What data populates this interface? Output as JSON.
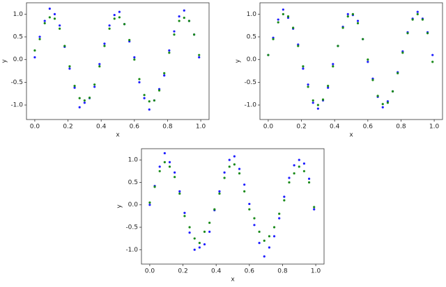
{
  "chart_data": [
    {
      "type": "scatter",
      "xlabel": "x",
      "ylabel": "y",
      "x": [
        0,
        0.03,
        0.06,
        0.09,
        0.12,
        0.15,
        0.18,
        0.21,
        0.24,
        0.27,
        0.3,
        0.33,
        0.36,
        0.39,
        0.42,
        0.45,
        0.48,
        0.51,
        0.54,
        0.57,
        0.6,
        0.63,
        0.66,
        0.69,
        0.72,
        0.75,
        0.78,
        0.81,
        0.84,
        0.87,
        0.9,
        0.93,
        0.96,
        0.99
      ],
      "series": [
        {
          "color": "#1f1fff",
          "values": [
            0.05,
            0.5,
            0.85,
            1.12,
            1.0,
            0.75,
            0.28,
            -0.2,
            -0.62,
            -1.05,
            -0.95,
            -0.85,
            -0.6,
            -0.1,
            0.35,
            0.75,
            0.98,
            1.05,
            0.78,
            0.4,
            0.05,
            -0.5,
            -0.85,
            -1.1,
            -0.9,
            -0.65,
            -0.35,
            0.2,
            0.62,
            0.95,
            1.08,
            0.85,
            0.55,
            0.05
          ]
        },
        {
          "color": "#1a8a1a",
          "values": [
            0.2,
            0.45,
            0.8,
            0.93,
            0.9,
            0.68,
            0.3,
            -0.15,
            -0.58,
            -0.85,
            -0.9,
            -0.84,
            -0.55,
            -0.15,
            0.3,
            0.68,
            0.9,
            0.93,
            0.78,
            0.43,
            0,
            -0.43,
            -0.78,
            -0.92,
            -0.9,
            -0.68,
            -0.3,
            0.15,
            0.55,
            0.85,
            0.92,
            0.85,
            0.55,
            0.1
          ]
        }
      ],
      "xlim": [
        -0.05,
        1.05
      ],
      "ylim": [
        -1.32,
        1.25
      ],
      "xticks": [
        {
          "value": 0,
          "label": "0.0"
        },
        {
          "value": 0.2,
          "label": "0.2"
        },
        {
          "value": 0.4,
          "label": "0.4"
        },
        {
          "value": 0.6,
          "label": "0.6"
        },
        {
          "value": 0.8,
          "label": "0.8"
        },
        {
          "value": 1,
          "label": "1.0"
        }
      ],
      "yticks": [
        {
          "value": -1,
          "label": "-1.0"
        },
        {
          "value": -0.5,
          "label": "-0.5"
        },
        {
          "value": 0,
          "label": "0.0"
        },
        {
          "value": 0.5,
          "label": "0.5"
        },
        {
          "value": 1,
          "label": "1.0"
        }
      ]
    },
    {
      "type": "scatter",
      "xlabel": "x",
      "ylabel": "y",
      "x": [
        0,
        0.03,
        0.06,
        0.09,
        0.12,
        0.15,
        0.18,
        0.21,
        0.24,
        0.27,
        0.3,
        0.33,
        0.36,
        0.39,
        0.42,
        0.45,
        0.48,
        0.51,
        0.54,
        0.57,
        0.6,
        0.63,
        0.66,
        0.69,
        0.72,
        0.75,
        0.78,
        0.81,
        0.84,
        0.87,
        0.9,
        0.93,
        0.96,
        0.99
      ],
      "series": [
        {
          "color": "#1f1fff",
          "values": [
            0.1,
            0.48,
            0.88,
            1.1,
            0.92,
            0.68,
            0.33,
            -0.2,
            -0.55,
            -0.95,
            -1.08,
            -0.9,
            -0.62,
            -0.1,
            0.3,
            0.72,
            1.0,
            0.98,
            0.85,
            0.45,
            -0.05,
            -0.42,
            -0.82,
            -1.05,
            -0.92,
            -0.7,
            -0.28,
            0.18,
            0.6,
            0.9,
            1.05,
            0.9,
            0.6,
            0.1
          ]
        },
        {
          "color": "#1a8a1a",
          "values": [
            0.1,
            0.45,
            0.82,
            1.0,
            0.95,
            0.7,
            0.3,
            -0.15,
            -0.6,
            -0.9,
            -1.0,
            -0.88,
            -0.58,
            -0.15,
            0.3,
            0.7,
            0.95,
            1.0,
            0.8,
            0.45,
            0,
            -0.45,
            -0.8,
            -0.98,
            -0.95,
            -0.7,
            -0.3,
            0.15,
            0.58,
            0.88,
            1.0,
            0.88,
            0.58,
            -0.05
          ]
        }
      ],
      "xlim": [
        -0.05,
        1.05
      ],
      "ylim": [
        -1.32,
        1.25
      ],
      "xticks": [
        {
          "value": 0,
          "label": "0.0"
        },
        {
          "value": 0.2,
          "label": "0.2"
        },
        {
          "value": 0.4,
          "label": "0.4"
        },
        {
          "value": 0.6,
          "label": "0.6"
        },
        {
          "value": 0.8,
          "label": "0.8"
        },
        {
          "value": 1,
          "label": "1.0"
        }
      ],
      "yticks": [
        {
          "value": -1,
          "label": "-1.0"
        },
        {
          "value": -0.5,
          "label": "-0.5"
        },
        {
          "value": 0,
          "label": "0.0"
        },
        {
          "value": 0.5,
          "label": "0.5"
        },
        {
          "value": 1,
          "label": "1.0"
        }
      ]
    },
    {
      "type": "scatter",
      "xlabel": "x",
      "ylabel": "y",
      "x": [
        0,
        0.03,
        0.06,
        0.09,
        0.12,
        0.15,
        0.18,
        0.21,
        0.24,
        0.27,
        0.3,
        0.33,
        0.36,
        0.39,
        0.42,
        0.45,
        0.48,
        0.51,
        0.54,
        0.57,
        0.6,
        0.63,
        0.66,
        0.69,
        0.72,
        0.75,
        0.78,
        0.81,
        0.84,
        0.87,
        0.9,
        0.93,
        0.96,
        0.99
      ],
      "series": [
        {
          "color": "#1f1fff",
          "values": [
            0,
            0.42,
            0.85,
            1.15,
            0.95,
            0.72,
            0.3,
            -0.18,
            -0.62,
            -1.0,
            -0.95,
            -0.88,
            -0.6,
            -0.12,
            0.3,
            0.72,
            1.0,
            1.08,
            0.8,
            0.45,
            0.02,
            -0.45,
            -0.85,
            -1.15,
            -0.95,
            -0.7,
            -0.3,
            0.18,
            0.6,
            0.88,
            1.0,
            0.92,
            0.58,
            -0.1
          ]
        },
        {
          "color": "#1a8a1a",
          "values": [
            0.05,
            0.4,
            0.75,
            0.95,
            0.85,
            0.62,
            0.25,
            -0.25,
            -0.5,
            -0.75,
            -0.85,
            -0.6,
            -0.4,
            -0.1,
            0.25,
            0.6,
            0.85,
            0.9,
            0.7,
            0.3,
            -0.1,
            -0.3,
            -0.6,
            -0.8,
            -0.7,
            -0.5,
            -0.2,
            0.1,
            0.5,
            0.7,
            0.85,
            0.75,
            0.5,
            -0.05
          ]
        }
      ],
      "xlim": [
        -0.05,
        1.05
      ],
      "ylim": [
        -1.32,
        1.25
      ],
      "xticks": [
        {
          "value": 0,
          "label": "0.0"
        },
        {
          "value": 0.2,
          "label": "0.2"
        },
        {
          "value": 0.4,
          "label": "0.4"
        },
        {
          "value": 0.6,
          "label": "0.6"
        },
        {
          "value": 0.8,
          "label": "0.8"
        },
        {
          "value": 1,
          "label": "1.0"
        }
      ],
      "yticks": [
        {
          "value": -1,
          "label": "-1.0"
        },
        {
          "value": -0.5,
          "label": "-0.5"
        },
        {
          "value": 0,
          "label": "0.0"
        },
        {
          "value": 0.5,
          "label": "0.5"
        },
        {
          "value": 1,
          "label": "1.0"
        }
      ]
    }
  ]
}
